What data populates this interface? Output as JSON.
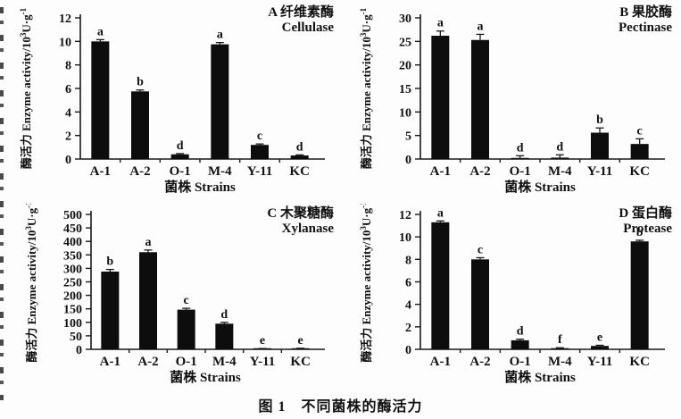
{
  "figure": {
    "caption": "图 1　不同菌株的酶活力",
    "background": "#fdfdfd",
    "bar_color": "#0d0d0d",
    "axis_color": "#1a1a1a",
    "xlabel": "菌株 Strains",
    "ylabel": {
      "text": "酶活力 Enzyme activity/10",
      "exp": "3",
      "unit": "U·g",
      "unit_exp": "-1"
    }
  },
  "chart_data": [
    {
      "type": "bar",
      "panel": "A",
      "title_zh": "A 纤维素酶",
      "title_en": "Cellulase",
      "categories": [
        "A-1",
        "A-2",
        "O-1",
        "M-4",
        "Y-11",
        "KC"
      ],
      "values": [
        10.0,
        5.75,
        0.4,
        9.75,
        1.2,
        0.3
      ],
      "errors": [
        0.15,
        0.12,
        0.06,
        0.15,
        0.08,
        0.05
      ],
      "sig_letters": [
        "a",
        "b",
        "d",
        "a",
        "c",
        "d"
      ],
      "xlabel": "菌株 Strains",
      "ylabel": "酶活力 Enzyme activity/10³U·g⁻¹",
      "ylim": [
        0,
        12
      ],
      "ytick_step": 2
    },
    {
      "type": "bar",
      "panel": "B",
      "title_zh": "B 果胶酶",
      "title_en": "Pectinase",
      "categories": [
        "A-1",
        "A-2",
        "O-1",
        "M-4",
        "Y-11",
        "KC"
      ],
      "values": [
        26.2,
        25.3,
        0.2,
        0.3,
        5.6,
        3.2
      ],
      "errors": [
        1.0,
        1.2,
        0.5,
        0.6,
        1.0,
        1.1
      ],
      "sig_letters": [
        "a",
        "a",
        "d",
        "d",
        "b",
        "c"
      ],
      "xlabel": "菌株 Strains",
      "ylabel": "酶活力 Enzyme activity/10³U·g⁻¹",
      "ylim": [
        0,
        30
      ],
      "ytick_step": 5
    },
    {
      "type": "bar",
      "panel": "C",
      "title_zh": "C 木聚糖酶",
      "title_en": "Xylanase",
      "categories": [
        "A-1",
        "A-2",
        "O-1",
        "M-4",
        "Y-11",
        "KC"
      ],
      "values": [
        288,
        360,
        147,
        95,
        2,
        3
      ],
      "errors": [
        8,
        8,
        5,
        5,
        1,
        1
      ],
      "sig_letters": [
        "b",
        "a",
        "c",
        "d",
        "e",
        "e"
      ],
      "xlabel": "菌株 Strains",
      "ylabel": "酶活力 Enzyme activity/10³U·g⁻¹",
      "ylim": [
        0,
        500
      ],
      "ytick_step": 50
    },
    {
      "type": "bar",
      "panel": "D",
      "title_zh": "D 蛋白酶",
      "title_en": "Protease",
      "categories": [
        "A-1",
        "A-2",
        "O-1",
        "M-4",
        "Y-11",
        "KC"
      ],
      "values": [
        11.3,
        8.0,
        0.8,
        0.1,
        0.3,
        9.6
      ],
      "errors": [
        0.12,
        0.15,
        0.1,
        0.04,
        0.06,
        0.1
      ],
      "sig_letters": [
        "a",
        "c",
        "d",
        "f",
        "e",
        "b"
      ],
      "xlabel": "菌株 Strains",
      "ylabel": "酶活力 Enzyme activity/10³U·g⁻¹",
      "ylim": [
        0,
        12
      ],
      "ytick_step": 2
    }
  ]
}
